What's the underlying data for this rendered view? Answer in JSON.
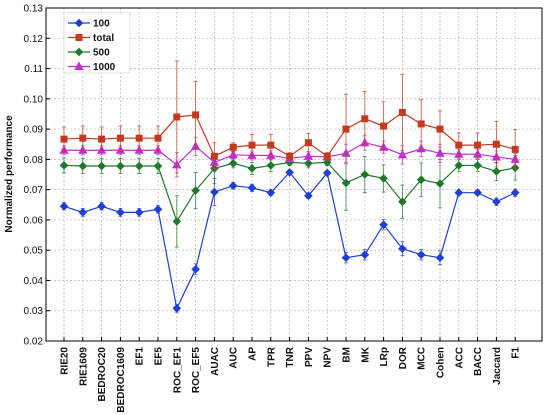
{
  "chart_data": {
    "type": "line",
    "title": "",
    "xlabel": "",
    "ylabel": "Normalized performance",
    "ylim": [
      0.02,
      0.13
    ],
    "yticks": [
      "0.02",
      "0.03",
      "0.04",
      "0.05",
      "0.06",
      "0.07",
      "0.08",
      "0.09",
      "0.10",
      "0.11",
      "0.12",
      "0.13"
    ],
    "grid": true,
    "legend_position": "top-left",
    "categories": [
      "RIE20",
      "RIE1609",
      "BEDROC20",
      "BEDROC1609",
      "EF1",
      "EF5",
      "ROC_EF1",
      "ROC_EF5",
      "AUAC",
      "AUC",
      "AP",
      "TPR",
      "TNR",
      "PPV",
      "NPV",
      "BM",
      "MK",
      "LRp",
      "DOR",
      "MCC",
      "Cohen",
      "ACC",
      "BACC",
      "Jaccard",
      "F1"
    ],
    "series": [
      {
        "name": "100",
        "color": "#1f3fd6",
        "marker": "diamond",
        "values": [
          0.0645,
          0.0625,
          0.0645,
          0.0625,
          0.0625,
          0.0635,
          0.0308,
          0.0437,
          0.0692,
          0.0713,
          0.0706,
          0.069,
          0.0757,
          0.068,
          0.0755,
          0.0475,
          0.0485,
          0.0584,
          0.0505,
          0.0485,
          0.0475,
          0.069,
          0.069,
          0.066,
          0.069
        ],
        "errors": [
          0.0012,
          0.0013,
          0.0012,
          0.0013,
          0.0013,
          0.0012,
          0.0013,
          0.0018,
          0.0045,
          0.001,
          0.0012,
          0.0009,
          0.0006,
          0.0009,
          0.0007,
          0.0017,
          0.0017,
          0.0017,
          0.0023,
          0.0017,
          0.0023,
          0.0008,
          0.0008,
          0.0012,
          0.0012
        ]
      },
      {
        "name": "total",
        "color": "#c43a1e",
        "marker": "square",
        "values": [
          0.0867,
          0.087,
          0.0867,
          0.087,
          0.087,
          0.087,
          0.094,
          0.0947,
          0.081,
          0.084,
          0.0847,
          0.0847,
          0.081,
          0.0855,
          0.081,
          0.09,
          0.0934,
          0.091,
          0.0955,
          0.0917,
          0.09,
          0.0847,
          0.0847,
          0.085,
          0.0833
        ],
        "errors": [
          0.004,
          0.004,
          0.004,
          0.004,
          0.004,
          0.004,
          0.0185,
          0.011,
          0.0045,
          0.0015,
          0.0035,
          0.0035,
          0.0012,
          0.003,
          0.0012,
          0.0115,
          0.009,
          0.008,
          0.0125,
          0.008,
          0.006,
          0.004,
          0.004,
          0.0075,
          0.0065
        ]
      },
      {
        "name": "500",
        "color": "#1d7a2a",
        "marker": "diamond",
        "values": [
          0.078,
          0.0778,
          0.0778,
          0.0778,
          0.0778,
          0.0778,
          0.0595,
          0.0697,
          0.077,
          0.0787,
          0.077,
          0.078,
          0.079,
          0.0787,
          0.079,
          0.0722,
          0.075,
          0.0737,
          0.066,
          0.0733,
          0.072,
          0.078,
          0.078,
          0.076,
          0.0772
        ],
        "errors": [
          0.0025,
          0.0025,
          0.0025,
          0.0025,
          0.0025,
          0.0025,
          0.0085,
          0.006,
          0.005,
          0.0015,
          0.002,
          0.002,
          0.001,
          0.0015,
          0.001,
          0.009,
          0.006,
          0.0045,
          0.0055,
          0.0055,
          0.008,
          0.002,
          0.002,
          0.003,
          0.004
        ]
      },
      {
        "name": "1000",
        "color": "#c22fd0",
        "marker": "triangle",
        "values": [
          0.083,
          0.083,
          0.083,
          0.083,
          0.083,
          0.083,
          0.0782,
          0.0843,
          0.079,
          0.0815,
          0.0813,
          0.0813,
          0.0803,
          0.081,
          0.0808,
          0.082,
          0.0855,
          0.084,
          0.0815,
          0.0835,
          0.082,
          0.0817,
          0.0817,
          0.0808,
          0.08
        ],
        "errors": [
          0.0015,
          0.0015,
          0.0015,
          0.0015,
          0.0015,
          0.0015,
          0.004,
          0.003,
          0.002,
          0.0012,
          0.0015,
          0.0015,
          0.001,
          0.0015,
          0.001,
          0.003,
          0.0025,
          0.002,
          0.003,
          0.0025,
          0.003,
          0.0015,
          0.0015,
          0.002,
          0.002
        ]
      }
    ],
    "legend_order": [
      "100",
      "total",
      "500",
      "1000"
    ],
    "draw_order": [
      "100",
      "500",
      "1000",
      "total"
    ]
  }
}
